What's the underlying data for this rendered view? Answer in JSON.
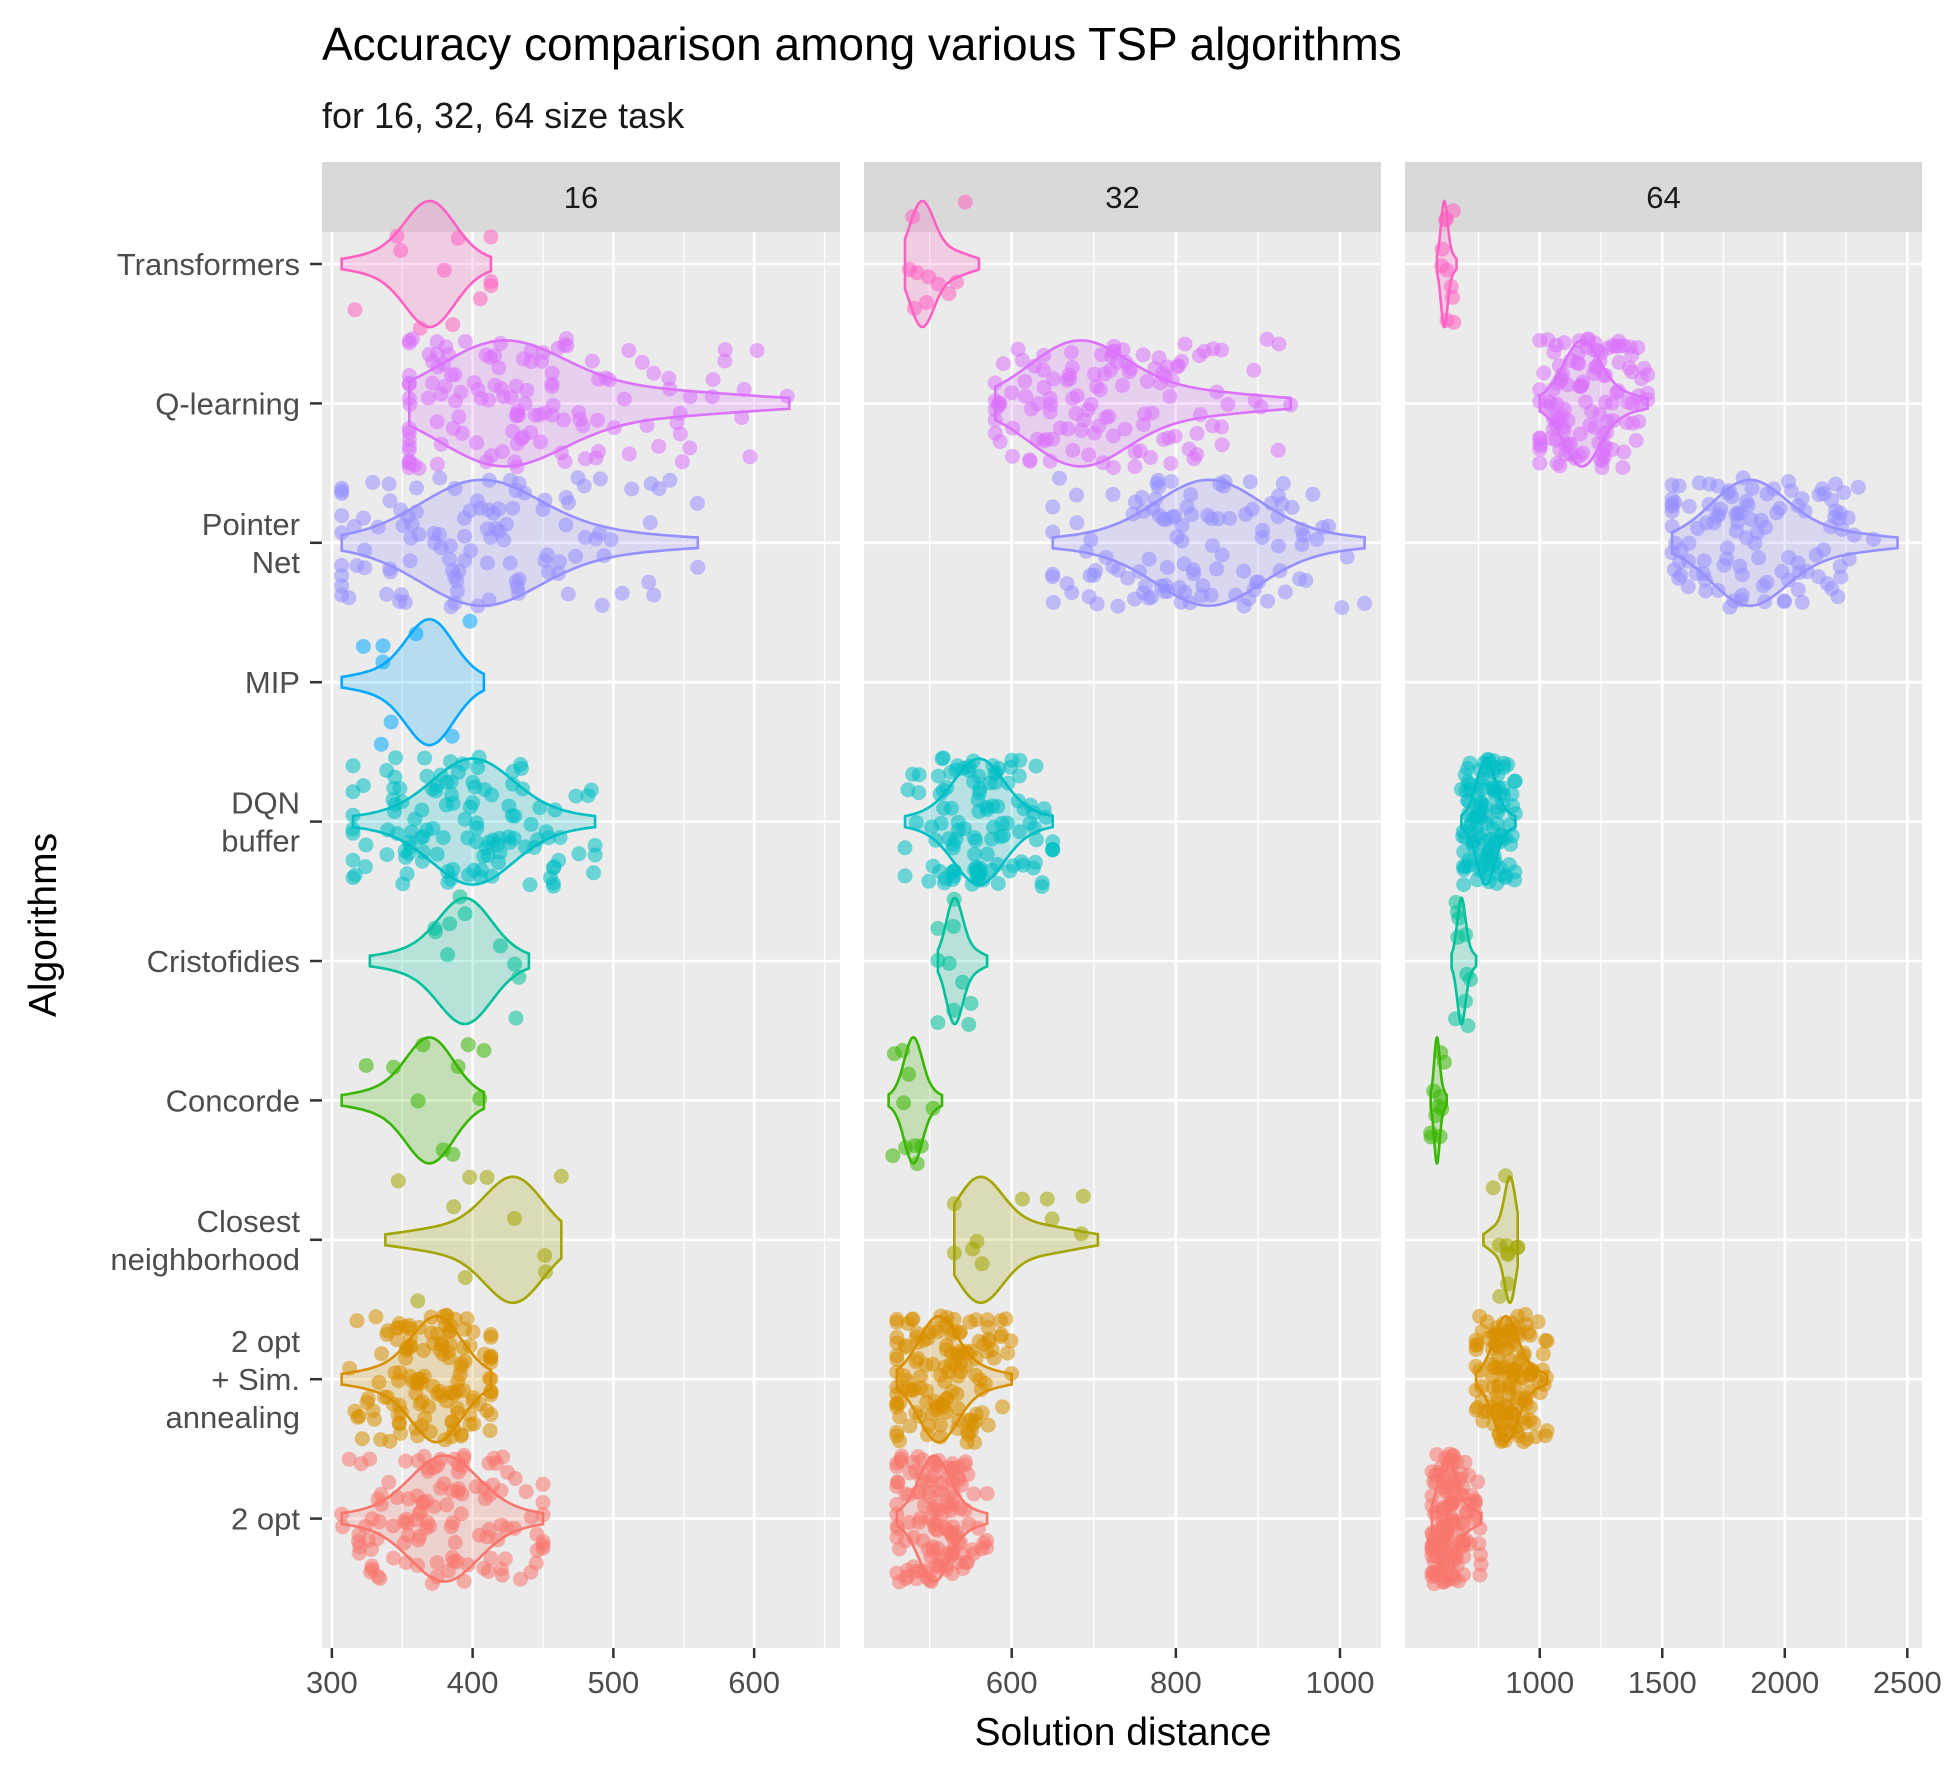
{
  "chart_data": {
    "type": "violin+jitter (faceted)",
    "title": "Accuracy comparison among various TSP algorithms",
    "subtitle": "for 16, 32, 64 size task",
    "xlabel": "Solution distance",
    "ylabel": "Algorithms",
    "categories": [
      "Transformers",
      "Q-learning",
      "Pointer\nNet",
      "MIP",
      "DQN\nbuffer",
      "Cristofidies",
      "Concorde",
      "Closest\nneighborhood",
      "2 opt\n+ Sim.\nannealing",
      "2 opt"
    ],
    "colors": {
      "Transformers": "#FF61C3",
      "Q-learning": "#DB72FB",
      "Pointer\nNet": "#9590FF",
      "MIP": "#00A9FF",
      "DQN\nbuffer": "#00BFC4",
      "Cristofidies": "#00C19A",
      "Concorde": "#39B600",
      "Closest\nneighborhood": "#A3A500",
      "2 opt\n+ Sim.\nannealing": "#D89000",
      "2 opt": "#F8766D"
    },
    "panel_background": "#EBEBEB",
    "strip_background": "#D9D9D9",
    "grid": true,
    "legend": "none",
    "facets": [
      {
        "label": "16",
        "xlim": [
          293,
          661
        ],
        "xticks": [
          300,
          400,
          500,
          600
        ],
        "series": [
          {
            "name": "Transformers",
            "min": 307,
            "max": 413,
            "mode": 370,
            "n": 11
          },
          {
            "name": "Q-learning",
            "min": 355,
            "max": 625,
            "mode": 420,
            "n": 130
          },
          {
            "name": "Pointer\nNet",
            "min": 307,
            "max": 560,
            "mode": 405,
            "n": 110
          },
          {
            "name": "MIP",
            "min": 307,
            "max": 408,
            "mode": 370,
            "n": 8
          },
          {
            "name": "DQN\nbuffer",
            "min": 315,
            "max": 487,
            "mode": 400,
            "n": 120
          },
          {
            "name": "Cristofidies",
            "min": 327,
            "max": 440,
            "mode": 395,
            "n": 10
          },
          {
            "name": "Concorde",
            "min": 307,
            "max": 408,
            "mode": 370,
            "n": 10
          },
          {
            "name": "Closest\nneighborhood",
            "min": 338,
            "max": 463,
            "mode": 430,
            "n": 10
          },
          {
            "name": "2 opt\n+ Sim.\nannealing",
            "min": 307,
            "max": 413,
            "mode": 375,
            "n": 130
          },
          {
            "name": "2 opt",
            "min": 307,
            "max": 450,
            "mode": 380,
            "n": 120
          }
        ]
      },
      {
        "label": "32",
        "xlim": [
          420,
          1050
        ],
        "xticks": [
          600,
          800,
          1000
        ],
        "series": [
          {
            "name": "Transformers",
            "min": 470,
            "max": 560,
            "mode": 490,
            "n": 10
          },
          {
            "name": "Q-learning",
            "min": 580,
            "max": 940,
            "mode": 680,
            "n": 120
          },
          {
            "name": "Pointer\nNet",
            "min": 650,
            "max": 1030,
            "mode": 840,
            "n": 110
          },
          {
            "name": "MIP",
            "min": null,
            "max": null,
            "mode": null,
            "n": 0
          },
          {
            "name": "DQN\nbuffer",
            "min": 470,
            "max": 650,
            "mode": 560,
            "n": 110
          },
          {
            "name": "Cristofidies",
            "min": 510,
            "max": 570,
            "mode": 530,
            "n": 10
          },
          {
            "name": "Concorde",
            "min": 450,
            "max": 515,
            "mode": 480,
            "n": 10
          },
          {
            "name": "Closest\nneighborhood",
            "min": 530,
            "max": 705,
            "mode": 560,
            "n": 10
          },
          {
            "name": "2 opt\n+ Sim.\nannealing",
            "min": 460,
            "max": 600,
            "mode": 510,
            "n": 130
          },
          {
            "name": "2 opt",
            "min": 460,
            "max": 570,
            "mode": 505,
            "n": 130
          }
        ]
      },
      {
        "label": "64",
        "xlim": [
          450,
          2560
        ],
        "xticks": [
          1000,
          1500,
          2000,
          2500
        ],
        "series": [
          {
            "name": "Transformers",
            "min": 580,
            "max": 660,
            "mode": 610,
            "n": 10
          },
          {
            "name": "Q-learning",
            "min": 1000,
            "max": 1440,
            "mode": 1170,
            "n": 120
          },
          {
            "name": "Pointer\nNet",
            "min": 1540,
            "max": 2460,
            "mode": 1850,
            "n": 110
          },
          {
            "name": "MIP",
            "min": null,
            "max": null,
            "mode": null,
            "n": 0
          },
          {
            "name": "DQN\nbuffer",
            "min": 680,
            "max": 900,
            "mode": 780,
            "n": 110
          },
          {
            "name": "Cristofidies",
            "min": 640,
            "max": 740,
            "mode": 680,
            "n": 10
          },
          {
            "name": "Concorde",
            "min": 555,
            "max": 620,
            "mode": 580,
            "n": 10
          },
          {
            "name": "Closest\nneighborhood",
            "min": 770,
            "max": 910,
            "mode": 880,
            "n": 10
          },
          {
            "name": "2 opt\n+ Sim.\nannealing",
            "min": 740,
            "max": 1030,
            "mode": 860,
            "n": 130
          },
          {
            "name": "2 opt",
            "min": 560,
            "max": 760,
            "mode": 620,
            "n": 130
          }
        ]
      }
    ]
  }
}
